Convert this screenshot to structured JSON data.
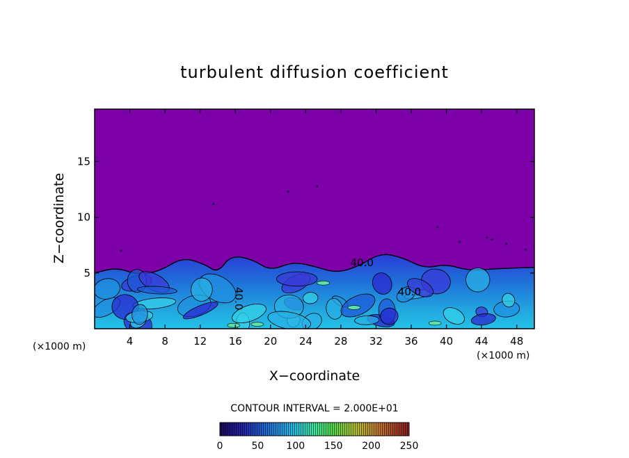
{
  "chart_data": {
    "type": "heatmap",
    "title": "turbulent diffusion coefficient",
    "xlabel": "X−coordinate",
    "ylabel": "Z−coordinate",
    "x_unit": "(×1000 m)",
    "x_unit_right": "(×1000 m)",
    "x_ticks": [
      4,
      8,
      12,
      16,
      20,
      24,
      28,
      32,
      36,
      40,
      44,
      48
    ],
    "y_ticks": [
      5,
      10,
      15
    ],
    "xlim": [
      0,
      50
    ],
    "ylim": [
      0,
      19.7
    ],
    "contour_interval_text": "CONTOUR INTERVAL = 2.000E+01",
    "contour_labels": [
      {
        "text": "40.0",
        "x": 30.4,
        "z": 5.6
      },
      {
        "text": "40.0",
        "x": 35.8,
        "z": 3.0
      },
      {
        "text": "40.0",
        "x": 16.0,
        "z": 2.7
      }
    ],
    "colorbar": {
      "ticks": [
        0,
        50,
        100,
        150,
        200,
        250
      ],
      "range": [
        0,
        250
      ],
      "colors": [
        "#1a0a5a",
        "#2424a8",
        "#1f6fd8",
        "#22b8e8",
        "#3ee6a0",
        "#58d84a",
        "#b8c030",
        "#c07a2a",
        "#a8402a",
        "#8a2020"
      ]
    },
    "background_value_color": "#7d00a8",
    "boundary_layer_top_z": [
      5.0,
      5.5,
      4.8,
      5.2,
      6.4,
      5.8,
      5.0,
      6.6,
      6.2,
      5.2,
      6.0,
      5.6,
      5.0,
      5.6,
      6.8,
      6.4,
      5.4,
      5.8,
      5.2,
      5.4,
      5.5
    ],
    "boundary_layer_top_x": [
      0,
      2.5,
      5,
      7.5,
      10,
      12.5,
      14,
      15.5,
      18,
      20,
      22.5,
      25,
      27.5,
      30,
      32.5,
      35,
      37.5,
      40,
      42.5,
      46,
      50
    ]
  }
}
